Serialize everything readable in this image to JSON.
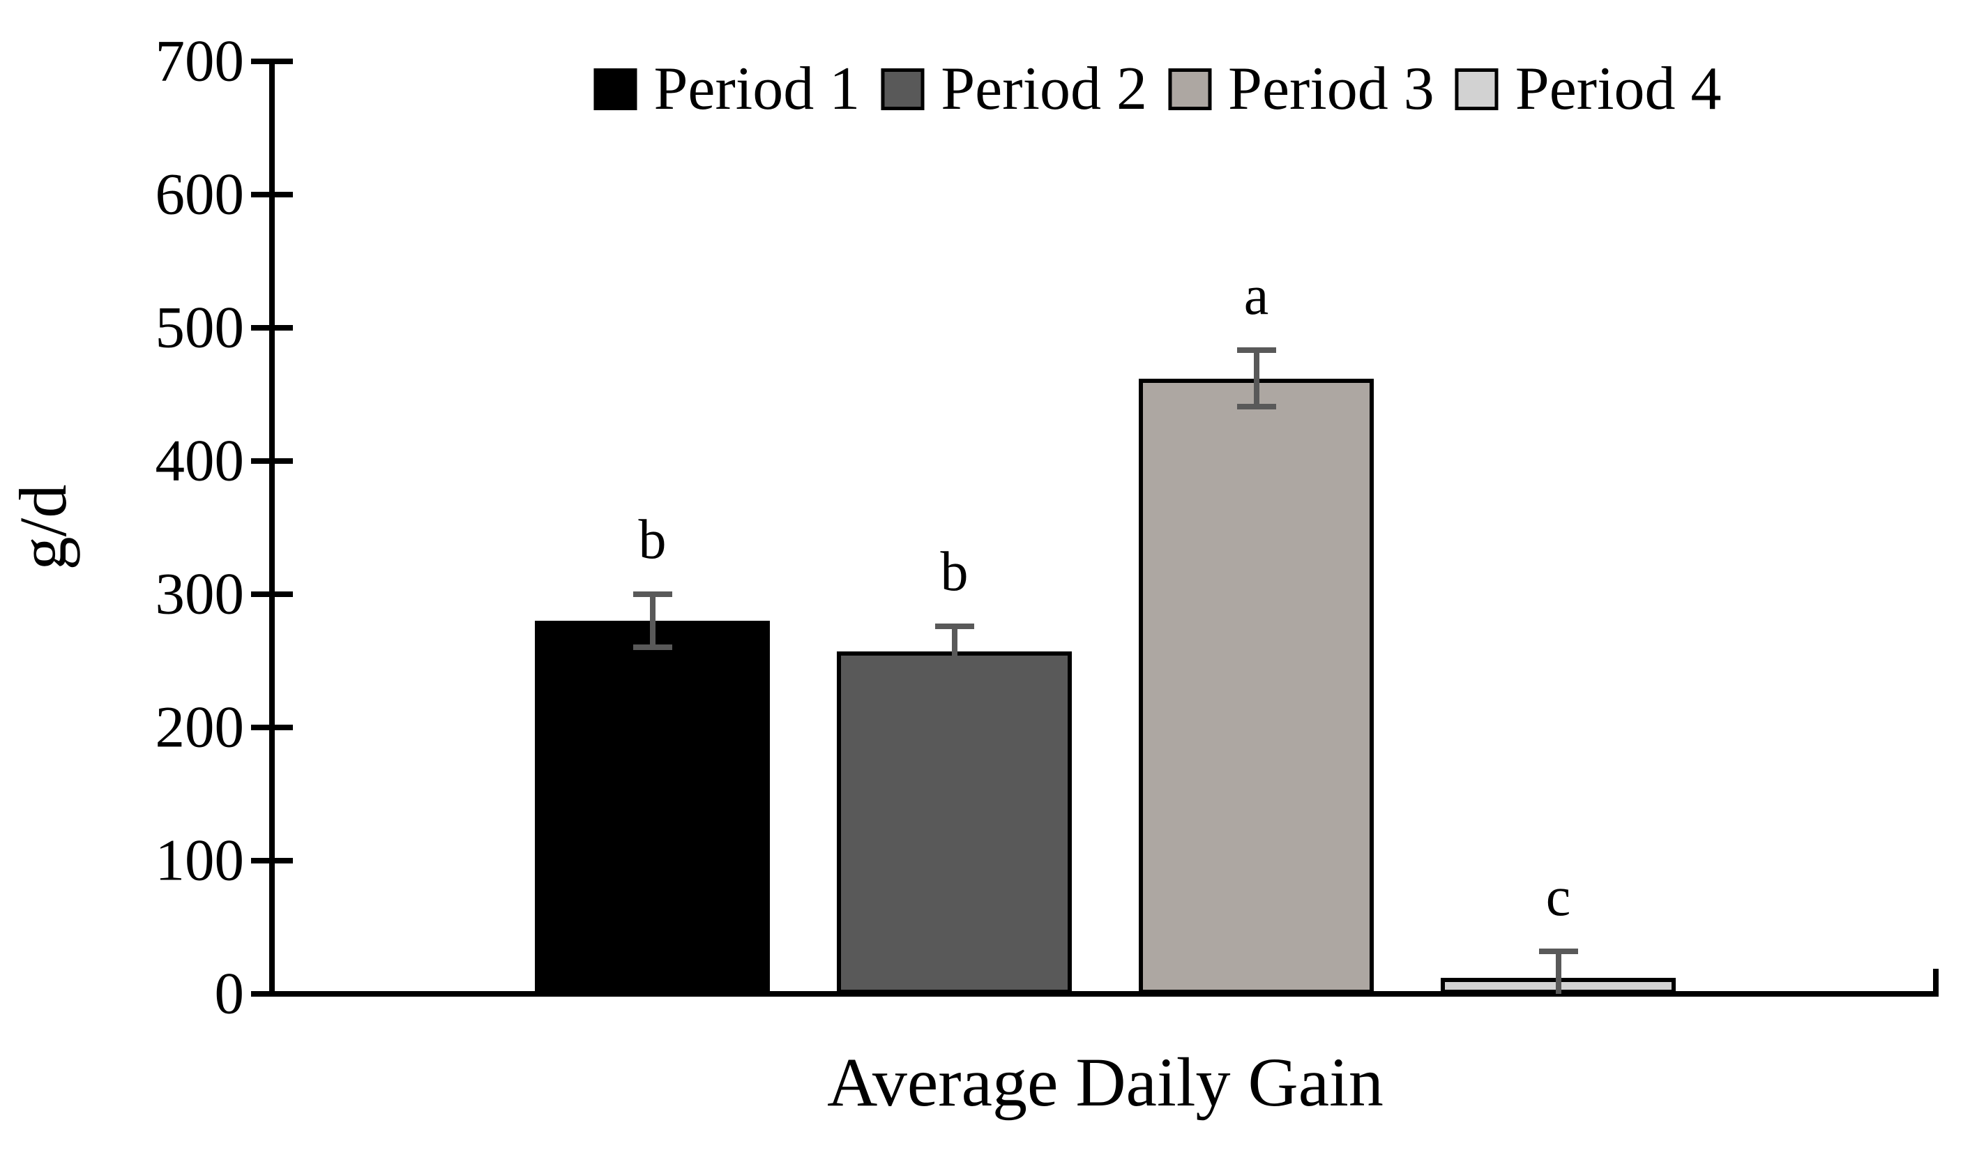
{
  "chart_data": {
    "type": "bar",
    "xlabel": "Average Daily Gain",
    "ylabel": "g/d",
    "categories": [
      "Period 1",
      "Period 2",
      "Period 3",
      "Period 4"
    ],
    "values": [
      280,
      257,
      462,
      12
    ],
    "errors": [
      20,
      19,
      21,
      20
    ],
    "sig_letters": [
      "b",
      "b",
      "a",
      "c"
    ],
    "yticks": [
      0,
      100,
      200,
      300,
      400,
      500,
      600,
      700
    ],
    "ylim": [
      0,
      700
    ],
    "grid": false,
    "legend_position": "top-center",
    "bar_colors": [
      "#000000",
      "#595959",
      "#ada7a2",
      "#d2d2d2"
    ],
    "bar_border_color": "#000000",
    "error_bar_color": "#595959",
    "axis_color": "#000000",
    "background_color": "#ffffff"
  }
}
